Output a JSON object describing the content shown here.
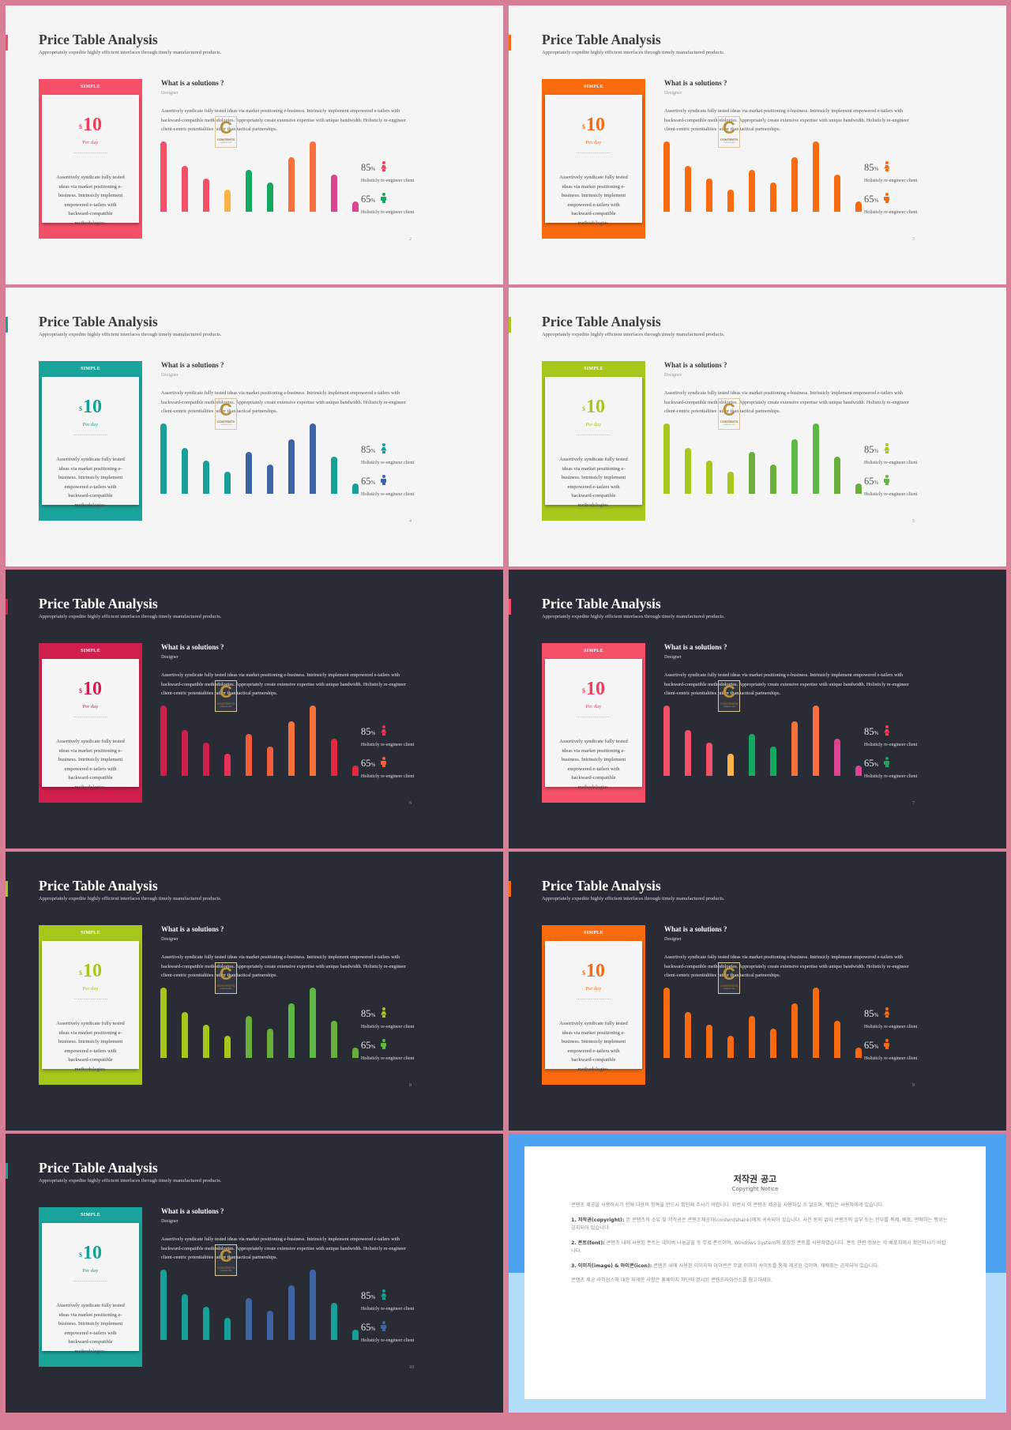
{
  "common": {
    "title": "Price Table Analysis",
    "subtitle": "Appropriately expedite highly efficient interfaces through timely manufactured products.",
    "card_label": "SIMPLE",
    "price_currency": "$",
    "price_value": "10",
    "price_period": "Per day",
    "card_description": "Assertively syndicate fully tested ideas via market positioning e-business. Intrinsicly implement empowered e-tailers with backward-compatible methodologies.",
    "question_title": "What is a solutions ?",
    "question_subtitle": "Designer",
    "question_body": "Assertively syndicate fully tested ideas via market positioning e-business. Intrinsicly implement empowered e-tailers with backward-compatible methodologies. Appropriately create extensive expertise with unique bandwidth. Holisticly re-engineer client-centric potentialities rather than tactical partnerships.",
    "stat1_value": "85",
    "stat2_value": "65",
    "stat_unit": "%",
    "stat1_label": "Holisticly re-engineer client",
    "stat2_label": "Holisticly re-engineer client",
    "watermark_letter": "C",
    "watermark_text": "CONTENTS",
    "watermark_subtext": "contents.com",
    "bar_values": [
      100,
      65,
      47,
      31,
      60,
      42,
      77,
      100,
      53,
      15
    ],
    "bar_max": 100
  },
  "slides": [
    {
      "theme": "light",
      "page": "2",
      "accent": "#f5506a",
      "card_color": "#f5506a",
      "price_color": "#ef3f5a",
      "female_icon_color": "#ef3f5a",
      "male_icon_color": "#16a860",
      "bar_colors": [
        "#f5506a",
        "#f5506a",
        "#f5506a",
        "#fbb445",
        "#16a860",
        "#16a860",
        "#f9703e",
        "#f9703e",
        "#d9468f",
        "#d9468f"
      ]
    },
    {
      "theme": "light",
      "page": "3",
      "accent": "#fa6b0f",
      "card_color": "#fa6b0f",
      "price_color": "#f96a10",
      "female_icon_color": "#f96a10",
      "male_icon_color": "#f96a10",
      "bar_colors": [
        "#fa6b0f",
        "#fa6b0f",
        "#fa6b0f",
        "#fa6b0f",
        "#fa6b0f",
        "#fa6b0f",
        "#fa6b0f",
        "#fa6b0f",
        "#fa6b0f",
        "#fa6b0f"
      ]
    },
    {
      "theme": "light",
      "page": "4",
      "accent": "#1aa39b",
      "card_color": "#1aa39b",
      "price_color": "#17a097",
      "female_icon_color": "#17a097",
      "male_icon_color": "#3e64a3",
      "bar_colors": [
        "#17a097",
        "#17a097",
        "#17a097",
        "#17a097",
        "#3e64a3",
        "#3e64a3",
        "#3e64a3",
        "#3e64a3",
        "#17a097",
        "#17a097"
      ]
    },
    {
      "theme": "light",
      "page": "5",
      "accent": "#a6c71c",
      "card_color": "#a6c71c",
      "price_color": "#a6c71c",
      "female_icon_color": "#a6c71c",
      "male_icon_color": "#5fb845",
      "bar_colors": [
        "#a6c71c",
        "#a6c71c",
        "#a6c71c",
        "#a6c71c",
        "#6aae3c",
        "#6aae3c",
        "#5fb845",
        "#5fb845",
        "#6aae3c",
        "#6aae3c"
      ]
    },
    {
      "theme": "dark",
      "page": "6",
      "accent": "#d01f4c",
      "card_color": "#d01f4c",
      "price_color": "#d01f4c",
      "female_icon_color": "#e8315b",
      "male_icon_color": "#f45d3c",
      "bar_colors": [
        "#d01f4c",
        "#d01f4c",
        "#d01f4c",
        "#e8315b",
        "#f45d3c",
        "#f45d3c",
        "#f7723a",
        "#f7723a",
        "#e2283f",
        "#e2283f"
      ]
    },
    {
      "theme": "dark",
      "page": "7",
      "accent": "#f5506a",
      "card_color": "#f5506a",
      "price_color": "#ef3f5a",
      "female_icon_color": "#ef3f5a",
      "male_icon_color": "#16a860",
      "bar_colors": [
        "#f5506a",
        "#f5506a",
        "#f5506a",
        "#fbb445",
        "#16a860",
        "#16a860",
        "#f9703e",
        "#f9703e",
        "#d9468f",
        "#d9468f"
      ]
    },
    {
      "theme": "dark",
      "page": "8",
      "accent": "#a6c71c",
      "card_color": "#a6c71c",
      "price_color": "#a6c71c",
      "female_icon_color": "#a6c71c",
      "male_icon_color": "#5fb845",
      "bar_colors": [
        "#a6c71c",
        "#a6c71c",
        "#a6c71c",
        "#a6c71c",
        "#6aae3c",
        "#6aae3c",
        "#5fb845",
        "#5fb845",
        "#6aae3c",
        "#6aae3c"
      ]
    },
    {
      "theme": "dark",
      "page": "9",
      "accent": "#fa6b0f",
      "card_color": "#fa6b0f",
      "price_color": "#f96a10",
      "female_icon_color": "#f96a10",
      "male_icon_color": "#f96a10",
      "bar_colors": [
        "#fa6b0f",
        "#fa6b0f",
        "#fa6b0f",
        "#fa6b0f",
        "#fa6b0f",
        "#fa6b0f",
        "#fa6b0f",
        "#fa6b0f",
        "#fa6b0f",
        "#fa6b0f"
      ]
    },
    {
      "theme": "dark",
      "page": "10",
      "accent": "#1aa39b",
      "card_color": "#1aa39b",
      "price_color": "#17a097",
      "female_icon_color": "#17a097",
      "male_icon_color": "#3e64a3",
      "bar_colors": [
        "#17a097",
        "#17a097",
        "#17a097",
        "#17a097",
        "#3e64a3",
        "#3e64a3",
        "#3e64a3",
        "#3e64a3",
        "#17a097",
        "#17a097"
      ]
    }
  ],
  "copyright": {
    "title": "저작권 공고",
    "subtitle": "Copyright Notice",
    "intro": "콘텐츠 제공을 사용하시기 전에 다음의 항목을 반드시 확인해 주시기 바랍니다. 위반시 이 콘텐츠 제공을 사용하실 수 없으며, 책임은 사용자에게 있습니다.",
    "item1_title": "1. 저작권(copyright):",
    "item1_text": "본 콘텐츠의 소유 및 저작권은 콘텐츠제공자(contentsbank)에게 귀속되어 있습니다. 사전 동의 없이 콘텐츠의 일부 또는 전부를 복제, 배포, 판매하는 행위는 금지되어 있습니다.",
    "item2_title": "2. 폰트(font):",
    "item2_text": "콘텐츠 내에 사용된 폰트는 네이버 나눔글꼴 등 무료 폰트이며, Windows System에 포함된 폰트를 사용하였습니다. 폰트 관련 정보는 각 배포처에서 확인하시기 바랍니다.",
    "item3_title": "3. 이미지(image) & 아이콘(icon):",
    "item3_text": "콘텐츠 내에 사용된 이미지와 아이콘은 무료 이미지 사이트를 통해 제공된 것이며, 재배포는 금지되어 있습니다.",
    "outro": "콘텐츠 제공 라이선스에 대한 자세한 사항은 홈페이지 하단에 명시된 콘텐츠라이선스를 참고하세요."
  }
}
